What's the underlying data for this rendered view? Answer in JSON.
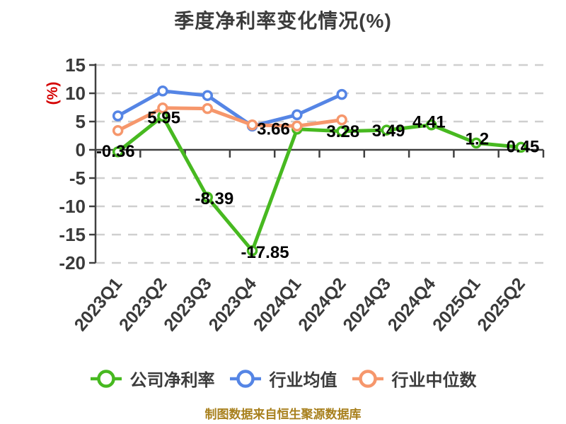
{
  "title": "季度净利率变化情况(%)",
  "footer": "制图数据来自恒生聚源数据库",
  "colors": {
    "company": "#47b920",
    "industry_avg": "#5585e5",
    "industry_median": "#f6976c",
    "marker_fill": "#ffffff",
    "grid": "#cfcfcf",
    "axis": "#404040",
    "tick_label": "#3a3a3a",
    "data_label": "#000000",
    "title_text": "#3c3c3c",
    "legend_text": "#3c3c3c",
    "footer_text": "#a8801d",
    "axis_name_red": "#d40000"
  },
  "chart_data": {
    "type": "line",
    "title": "季度净利率变化情况(%)",
    "ylabel": "(%)",
    "ylim": [
      -20,
      15
    ],
    "y_ticks": [
      15,
      10,
      5,
      0,
      -5,
      -10,
      -15,
      -20
    ],
    "grid": "dashed horizontal",
    "legend_position": "bottom",
    "categories": [
      "2023Q1",
      "2023Q2",
      "2023Q3",
      "2023Q4",
      "2024Q1",
      "2024Q2",
      "2024Q3",
      "2024Q4",
      "2025Q1",
      "2025Q2"
    ],
    "series": [
      {
        "name": "公司净利率",
        "color_key": "company",
        "values": [
          -0.36,
          5.95,
          -8.39,
          -17.85,
          3.66,
          3.28,
          3.49,
          4.41,
          1.2,
          0.45
        ],
        "point_labels": [
          "-0.36",
          "5.95",
          "-8.39",
          "-17.85",
          "3.66",
          "3.28",
          "3.49",
          "4.41",
          "1.2",
          "0.45"
        ]
      },
      {
        "name": "行业均值",
        "color_key": "industry_avg",
        "values": [
          6.0,
          10.4,
          9.6,
          4.2,
          6.2,
          9.8
        ],
        "point_labels": []
      },
      {
        "name": "行业中位数",
        "color_key": "industry_median",
        "values": [
          3.4,
          7.4,
          7.3,
          4.4,
          4.2,
          5.3
        ],
        "point_labels": []
      }
    ]
  }
}
